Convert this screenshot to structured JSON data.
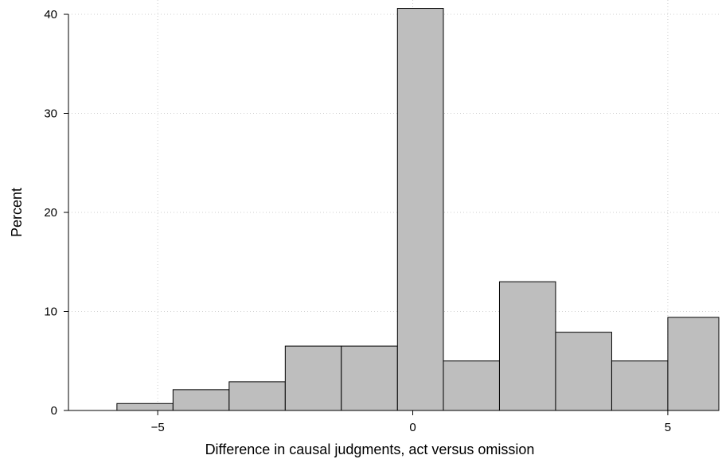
{
  "chart_data": {
    "type": "bar",
    "xlabel": "Difference in causal judgments, act versus omission",
    "ylabel": "Percent",
    "x_ticks": [
      -5,
      0,
      5
    ],
    "x_tick_labels": [
      "−5",
      "0",
      "5"
    ],
    "y_ticks": [
      0,
      10,
      20,
      30,
      40
    ],
    "y_tick_labels": [
      "0",
      "10",
      "20",
      "30",
      "40"
    ],
    "xlim": [
      -6.75,
      6
    ],
    "ylim": [
      0,
      40
    ],
    "grid": true,
    "bar_color": "#bebebe",
    "bins": [
      {
        "x0": -5.8,
        "x1": -4.7,
        "value": 0.7
      },
      {
        "x0": -4.7,
        "x1": -3.6,
        "value": 2.1
      },
      {
        "x0": -3.6,
        "x1": -2.5,
        "value": 2.9
      },
      {
        "x0": -2.5,
        "x1": -1.4,
        "value": 6.5
      },
      {
        "x0": -1.4,
        "x1": -0.3,
        "value": 6.5
      },
      {
        "x0": -0.3,
        "x1": 0.6,
        "value": 40.6
      },
      {
        "x0": 0.6,
        "x1": 1.7,
        "value": 5.0
      },
      {
        "x0": 1.7,
        "x1": 2.8,
        "value": 13.0
      },
      {
        "x0": 2.8,
        "x1": 3.9,
        "value": 7.9
      },
      {
        "x0": 3.9,
        "x1": 5.0,
        "value": 5.0
      },
      {
        "x0": 5.0,
        "x1": 6.0,
        "value": 9.4
      }
    ]
  }
}
